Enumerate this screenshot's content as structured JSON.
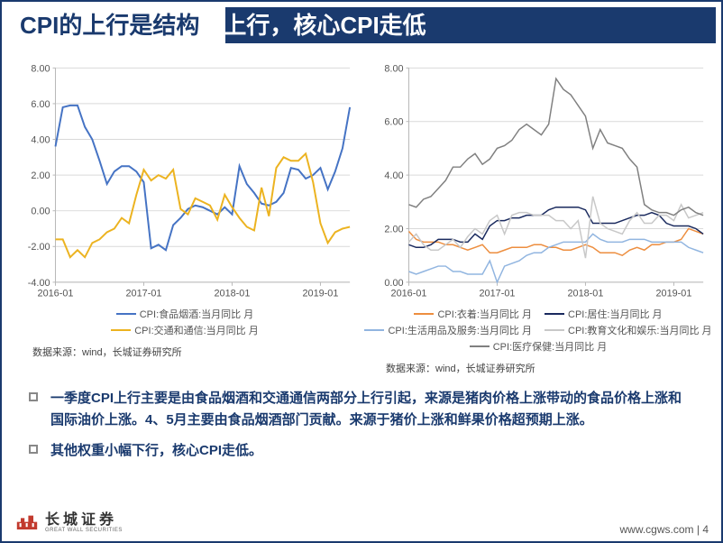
{
  "title": {
    "dark_part": "CPI的上行是结构",
    "light_part": "性上行，核心CPI走低"
  },
  "chart_left": {
    "type": "line",
    "x_labels": [
      "2016-01",
      "2017-01",
      "2018-01",
      "2019-01"
    ],
    "x_positions": [
      0,
      12,
      24,
      36
    ],
    "x_count": 41,
    "ylim": [
      -4,
      8
    ],
    "ytick_step": 2,
    "yticks_fmt": [
      "-4.00",
      "-2.00",
      "0.00",
      "2.00",
      "4.00",
      "6.00",
      "8.00"
    ],
    "grid_color": "#d9d9d9",
    "background_color": "#ffffff",
    "series": [
      {
        "name": "CPI:食品烟酒:当月同比 月",
        "color": "#4573c4",
        "line_width": 2,
        "values": [
          3.6,
          5.8,
          5.9,
          5.9,
          4.7,
          4.0,
          2.8,
          1.5,
          2.2,
          2.5,
          2.5,
          2.2,
          1.6,
          -2.1,
          -1.9,
          -2.2,
          -0.8,
          -0.4,
          0.1,
          0.3,
          0.2,
          0.0,
          -0.2,
          0.2,
          -0.2,
          2.5,
          1.5,
          1.0,
          0.4,
          0.3,
          0.5,
          1.0,
          2.4,
          2.3,
          1.8,
          2.0,
          2.4,
          1.2,
          2.2,
          3.5,
          5.8
        ]
      },
      {
        "name": "CPI:交通和通信:当月同比 月",
        "color": "#ecb320",
        "line_width": 2,
        "values": [
          -1.6,
          -1.6,
          -2.6,
          -2.2,
          -2.6,
          -1.8,
          -1.6,
          -1.2,
          -1.0,
          -0.4,
          -0.7,
          0.9,
          2.3,
          1.7,
          2.0,
          1.8,
          2.3,
          0.1,
          -0.2,
          0.7,
          0.5,
          0.3,
          -0.5,
          0.9,
          0.2,
          -0.4,
          -0.9,
          -1.1,
          1.3,
          -0.3,
          2.4,
          3.0,
          2.8,
          2.8,
          3.2,
          1.6,
          -0.7,
          -1.8,
          -1.2,
          -1.0,
          -0.9
        ]
      }
    ]
  },
  "chart_right": {
    "type": "line",
    "x_labels": [
      "2016-01",
      "2017-01",
      "2018-01",
      "2019-01"
    ],
    "x_positions": [
      0,
      12,
      24,
      36
    ],
    "x_count": 41,
    "ylim": [
      0,
      8
    ],
    "ytick_step": 2,
    "yticks_fmt": [
      "0.00",
      "2.00",
      "4.00",
      "6.00",
      "8.00"
    ],
    "grid_color": "#d9d9d9",
    "background_color": "#ffffff",
    "series": [
      {
        "name": "CPI:衣着:当月同比 月",
        "color": "#ed8e3f",
        "line_width": 1.5,
        "values": [
          1.9,
          1.6,
          1.5,
          1.5,
          1.5,
          1.4,
          1.4,
          1.3,
          1.2,
          1.3,
          1.4,
          1.1,
          1.1,
          1.2,
          1.3,
          1.3,
          1.3,
          1.4,
          1.4,
          1.3,
          1.3,
          1.2,
          1.2,
          1.3,
          1.4,
          1.3,
          1.1,
          1.1,
          1.1,
          1.0,
          1.2,
          1.3,
          1.2,
          1.4,
          1.4,
          1.5,
          1.5,
          1.6,
          2.0,
          1.9,
          1.8
        ]
      },
      {
        "name": "CPI:居住:当月同比 月",
        "color": "#1a2a5e",
        "line_width": 1.5,
        "values": [
          1.4,
          1.3,
          1.3,
          1.4,
          1.6,
          1.6,
          1.6,
          1.5,
          1.5,
          1.8,
          1.6,
          2.1,
          2.3,
          2.3,
          2.4,
          2.4,
          2.5,
          2.5,
          2.5,
          2.7,
          2.8,
          2.8,
          2.8,
          2.8,
          2.7,
          2.2,
          2.2,
          2.2,
          2.2,
          2.3,
          2.4,
          2.5,
          2.5,
          2.6,
          2.5,
          2.2,
          2.1,
          2.1,
          2.1,
          2.0,
          1.8
        ]
      },
      {
        "name": "CPI:生活用品及服务:当月同比 月",
        "color": "#91b5e0",
        "line_width": 1.5,
        "values": [
          0.4,
          0.3,
          0.4,
          0.5,
          0.6,
          0.6,
          0.4,
          0.4,
          0.3,
          0.3,
          0.3,
          0.8,
          0.0,
          0.6,
          0.7,
          0.8,
          1.0,
          1.1,
          1.1,
          1.3,
          1.4,
          1.5,
          1.5,
          1.5,
          1.5,
          1.8,
          1.6,
          1.5,
          1.5,
          1.5,
          1.6,
          1.6,
          1.6,
          1.5,
          1.5,
          1.5,
          1.5,
          1.5,
          1.3,
          1.2,
          1.1
        ]
      },
      {
        "name": "CPI:教育文化和娱乐:当月同比 月",
        "color": "#c8c8c8",
        "line_width": 1.5,
        "values": [
          1.5,
          1.8,
          1.4,
          1.2,
          1.2,
          1.4,
          1.6,
          1.3,
          1.7,
          2.0,
          1.8,
          2.3,
          2.5,
          1.8,
          2.5,
          2.6,
          2.6,
          2.5,
          2.5,
          2.5,
          2.3,
          2.3,
          2.0,
          2.3,
          0.9,
          3.2,
          2.2,
          2.0,
          1.9,
          1.8,
          2.3,
          2.6,
          2.2,
          2.2,
          2.5,
          2.5,
          2.3,
          2.9,
          2.4,
          2.5,
          2.6
        ]
      },
      {
        "name": "CPI:医疗保健:当月同比 月",
        "color": "#808080",
        "line_width": 1.5,
        "values": [
          2.9,
          2.8,
          3.1,
          3.2,
          3.5,
          3.8,
          4.3,
          4.3,
          4.6,
          4.8,
          4.4,
          4.6,
          5.0,
          5.1,
          5.3,
          5.7,
          5.9,
          5.7,
          5.5,
          5.9,
          7.6,
          7.2,
          7.0,
          6.6,
          6.2,
          5.0,
          5.7,
          5.2,
          5.1,
          5.0,
          4.6,
          4.3,
          2.9,
          2.7,
          2.6,
          2.6,
          2.5,
          2.7,
          2.8,
          2.6,
          2.5
        ]
      }
    ]
  },
  "sources": {
    "left": "数据来源：wind，长城证券研究所",
    "right": "数据来源：wind，长城证券研究所"
  },
  "bullets": [
    "一季度CPI上行主要是由食品烟酒和交通通信两部分上行引起，来源是猪肉价格上涨带动的食品价格上涨和国际油价上涨。4、5月主要由食品烟酒部门贡献。来源于猪价上涨和鲜果价格超预期上涨。",
    "其他权重小幅下行，核心CPI走低。"
  ],
  "footer": {
    "logo_cn": "长城证券",
    "logo_en": "GREAT WALL SECURITIES",
    "url": "www.cgws.com",
    "page_sep": " | ",
    "page_num": "4"
  },
  "colors": {
    "primary": "#1a3a6e",
    "logo_red": "#c23a2e"
  }
}
